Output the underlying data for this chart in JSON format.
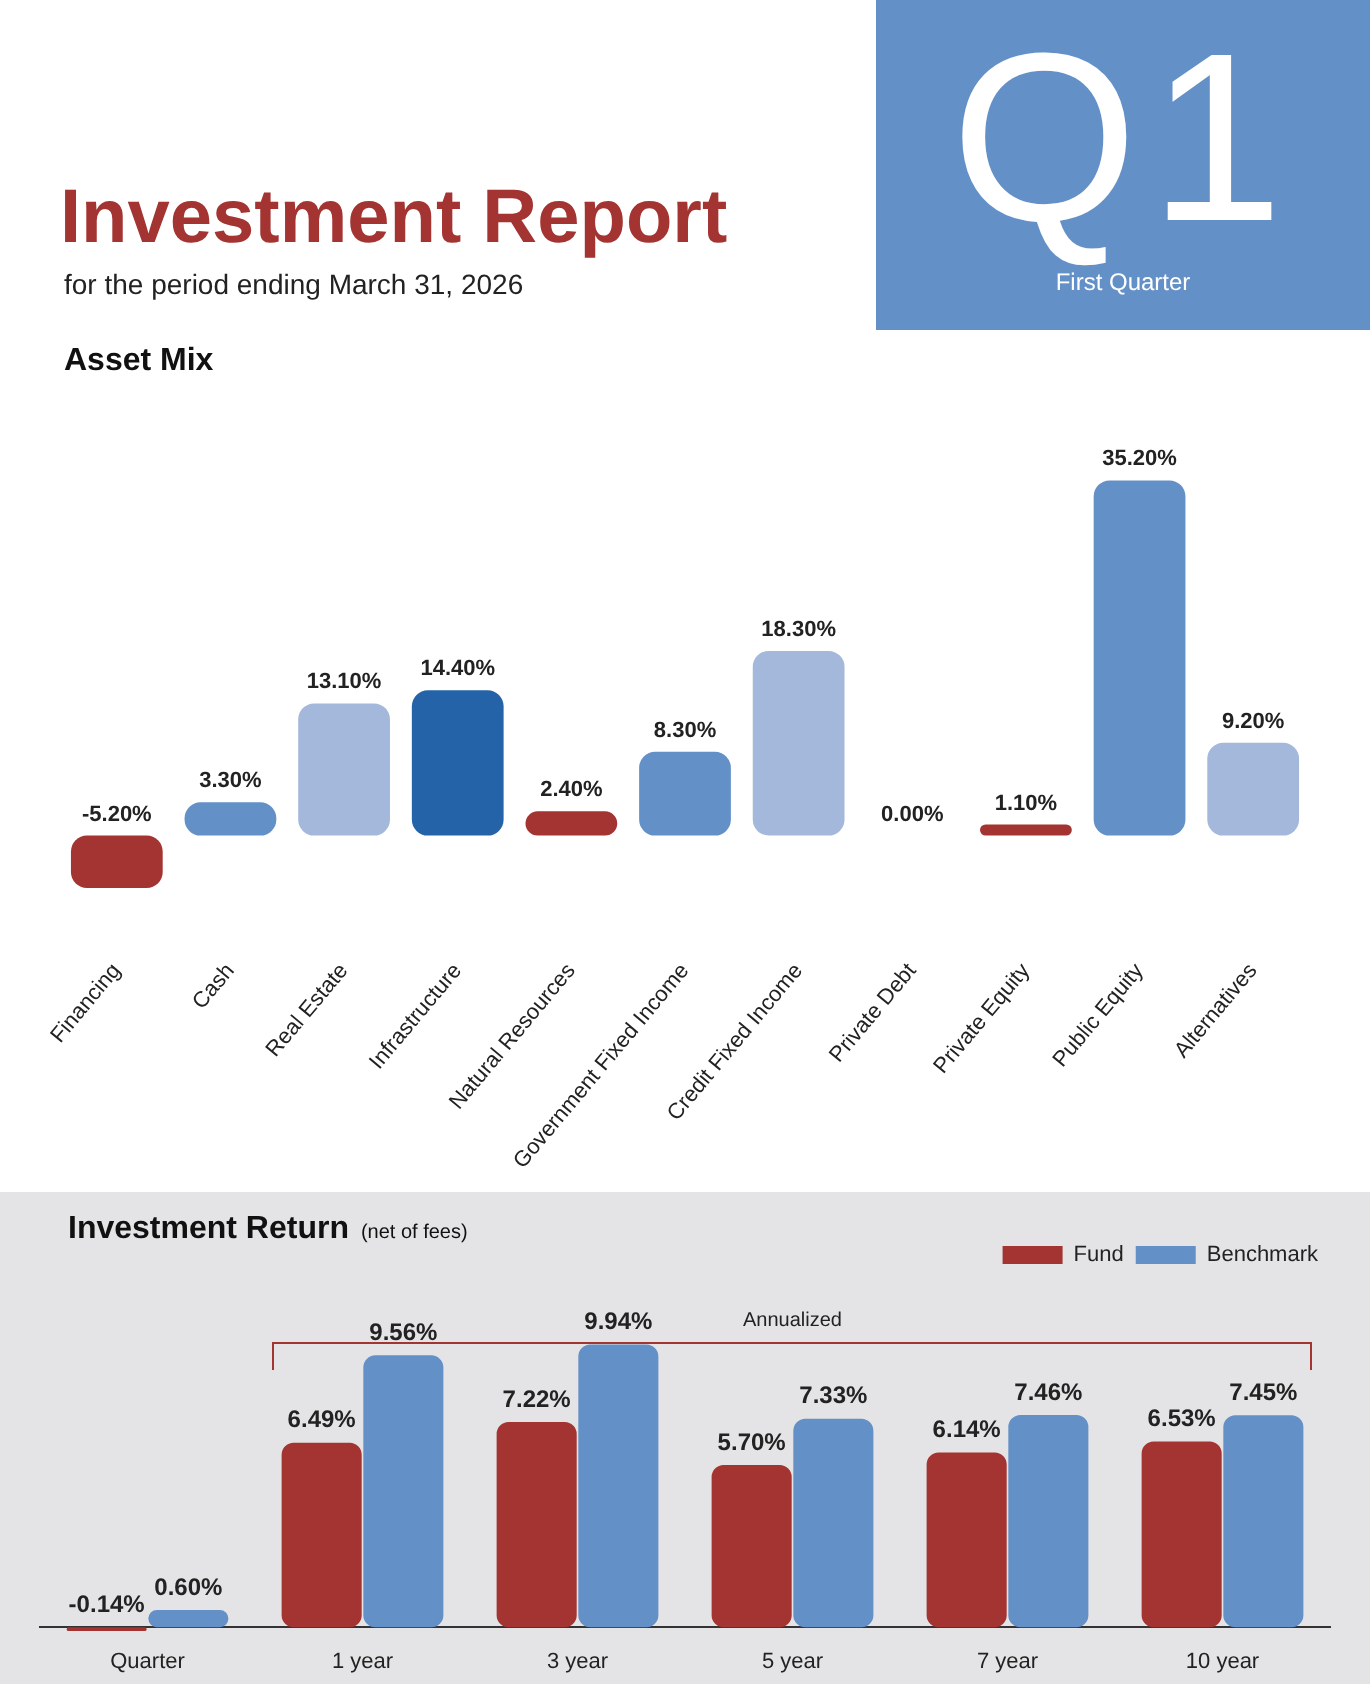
{
  "chart_data": [
    {
      "type": "other",
      "title": "Investment Report",
      "subtitle": "for the period ending March 31, 2026",
      "annotations": [
        "Q1",
        "First Quarter"
      ]
    },
    {
      "type": "bar",
      "title": "Asset Mix",
      "categories": [
        "Financing",
        "Cash",
        "Real Estate",
        "Infrastructure",
        "Natural Resources",
        "Government Fixed Income",
        "Credit Fixed Income",
        "Private Debt",
        "Private Equity",
        "Public Equity",
        "Alternatives"
      ],
      "values": [
        -5.2,
        3.3,
        13.1,
        14.4,
        2.4,
        8.3,
        18.3,
        0.0,
        1.1,
        35.2,
        9.2
      ],
      "value_labels": [
        "-5.20%",
        "3.30%",
        "13.10%",
        "14.40%",
        "2.40%",
        "8.30%",
        "18.30%",
        "0.00%",
        "1.10%",
        "35.20%",
        "9.20%"
      ],
      "colors": [
        "#a33431",
        "#6490c8",
        "#a3b8db",
        "#2563a8",
        "#a33431",
        "#6490c8",
        "#a3b8db",
        "#a33431",
        "#a33431",
        "#6490c8",
        "#a3b8db"
      ]
    },
    {
      "type": "bar",
      "title": "Investment Return",
      "subtitle": "(net of fees)",
      "categories": [
        "Quarter",
        "1 year",
        "3 year",
        "5 year",
        "7 year",
        "10 year"
      ],
      "legend": "top right",
      "annotations": [
        "Annualized"
      ],
      "series": [
        {
          "name": "Fund",
          "color": "#a33431",
          "values": [
            -0.14,
            6.49,
            7.22,
            5.7,
            6.14,
            6.53
          ],
          "value_labels": [
            "-0.14%",
            "6.49%",
            "7.22%",
            "5.70%",
            "6.14%",
            "6.53%"
          ]
        },
        {
          "name": "Benchmark",
          "color": "#6490c8",
          "values": [
            0.6,
            9.56,
            9.94,
            7.33,
            7.46,
            7.45
          ],
          "value_labels": [
            "0.60%",
            "9.56%",
            "9.94%",
            "7.33%",
            "7.46%",
            "7.45%"
          ]
        }
      ]
    }
  ]
}
